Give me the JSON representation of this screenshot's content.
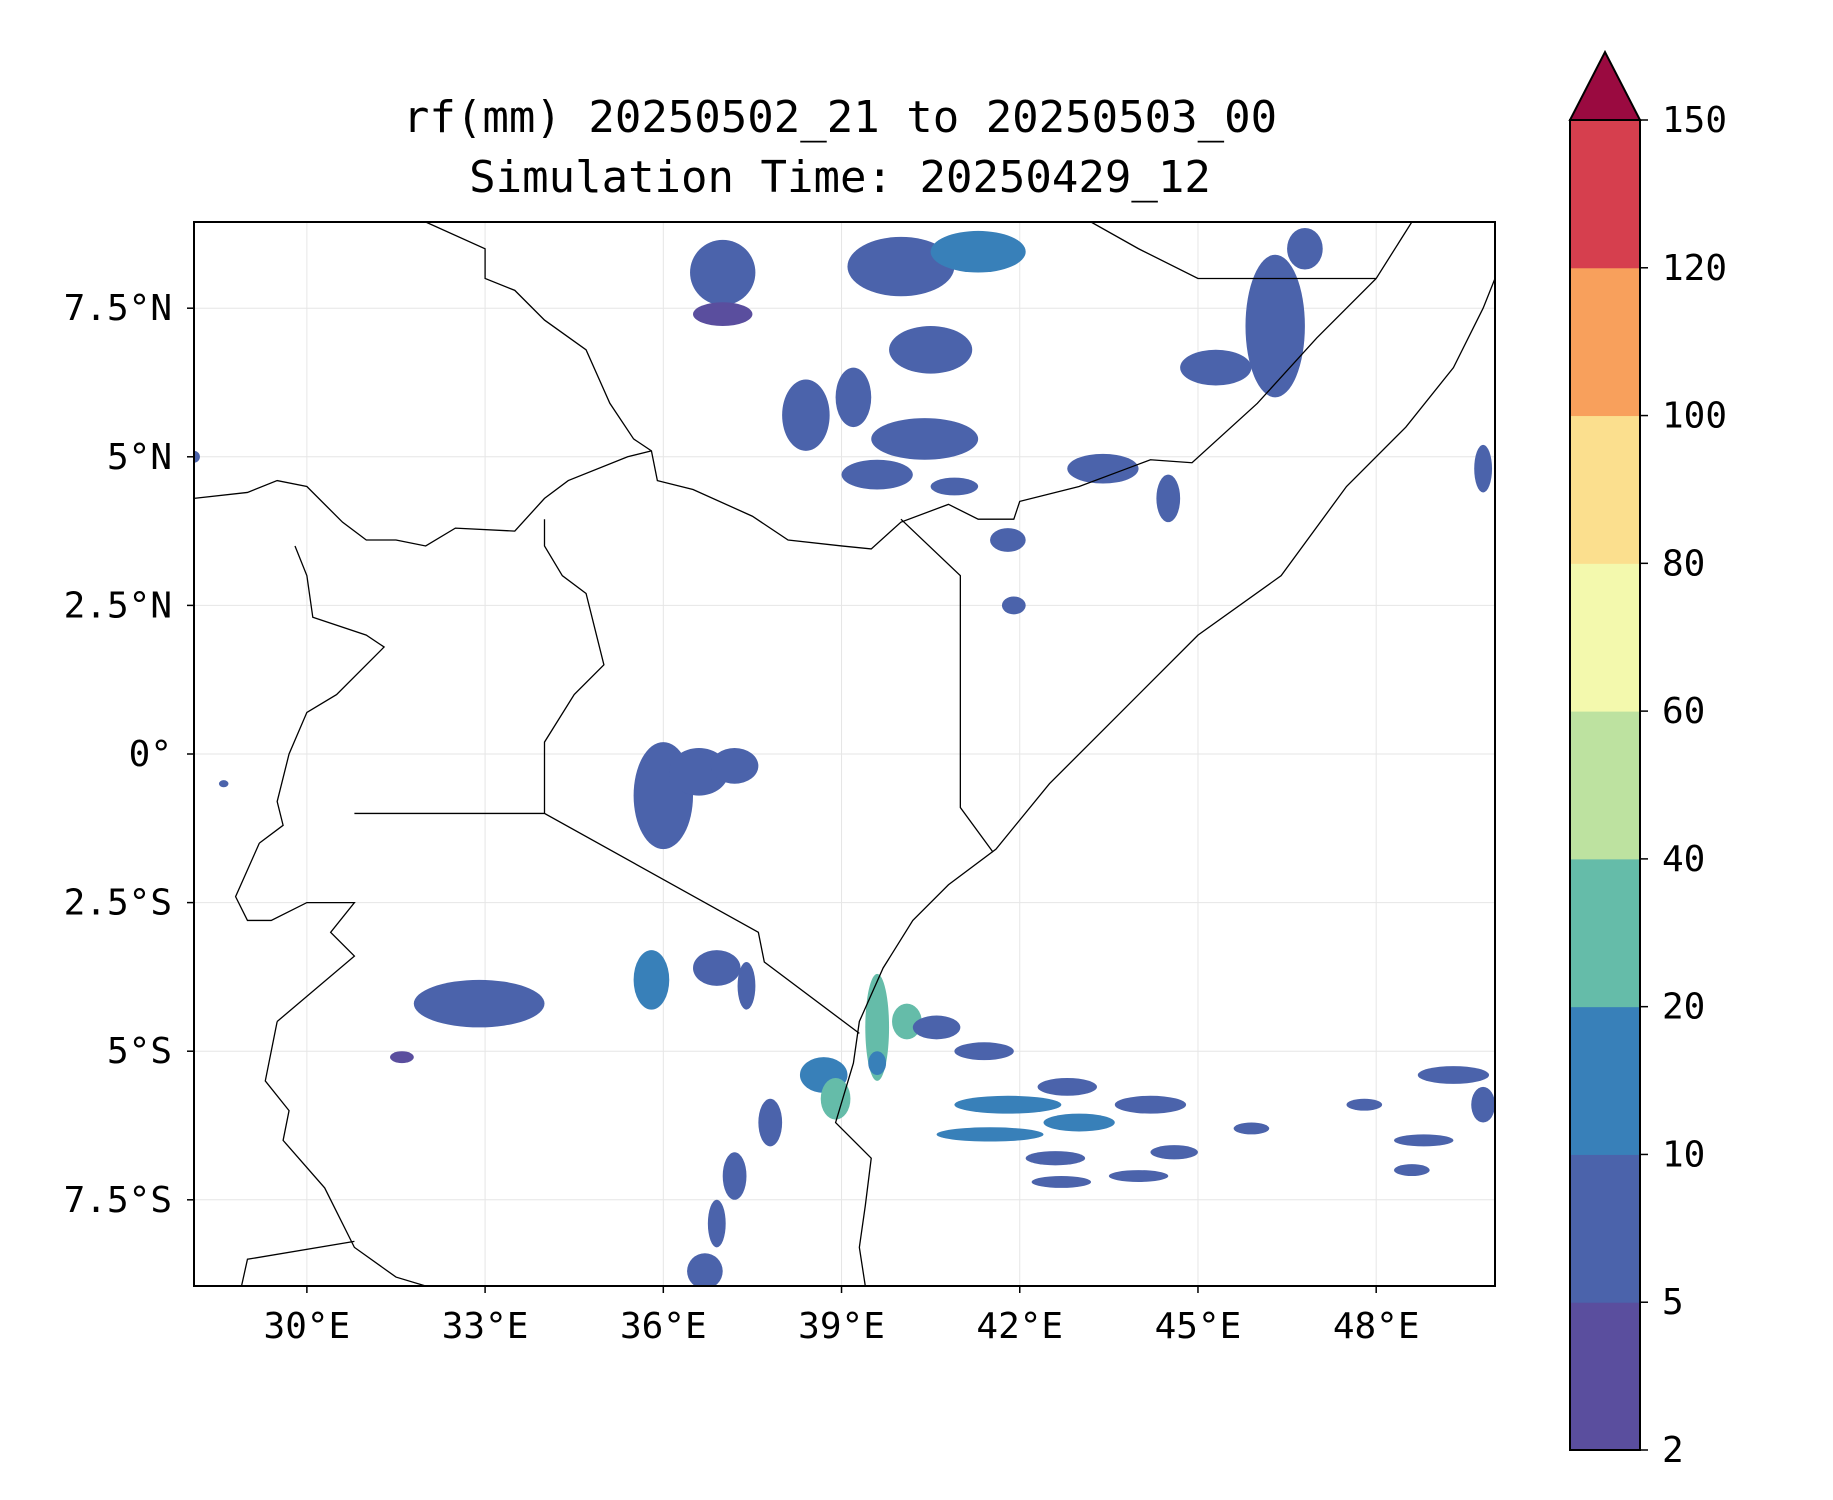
{
  "title": {
    "line1": "rf(mm) 20250502_21 to 20250503_00",
    "line2": "Simulation Time: 20250429_12"
  },
  "map": {
    "extent": {
      "lon_min": 28.1,
      "lon_max": 50.0,
      "lat_min": -8.95,
      "lat_max": 8.95
    },
    "gridlines": true,
    "lon_ticks": [
      {
        "value": 30,
        "label": "30°E"
      },
      {
        "value": 33,
        "label": "33°E"
      },
      {
        "value": 36,
        "label": "36°E"
      },
      {
        "value": 39,
        "label": "39°E"
      },
      {
        "value": 42,
        "label": "42°E"
      },
      {
        "value": 45,
        "label": "45°E"
      },
      {
        "value": 48,
        "label": "48°E"
      }
    ],
    "lat_ticks": [
      {
        "value": 7.5,
        "label": "7.5°N"
      },
      {
        "value": 5,
        "label": "5°N"
      },
      {
        "value": 2.5,
        "label": "2.5°N"
      },
      {
        "value": 0,
        "label": "0°"
      },
      {
        "value": -2.5,
        "label": "2.5°S"
      },
      {
        "value": -5,
        "label": "5°S"
      },
      {
        "value": -7.5,
        "label": "7.5°S"
      }
    ],
    "borders": [
      [
        [
          32.0,
          8.95
        ],
        [
          33.0,
          8.5
        ],
        [
          33.0,
          8.0
        ],
        [
          33.5,
          7.8
        ],
        [
          34.0,
          7.3
        ],
        [
          34.7,
          6.8
        ],
        [
          35.1,
          5.9
        ],
        [
          35.5,
          5.3
        ],
        [
          35.8,
          5.1
        ],
        [
          35.9,
          4.6
        ],
        [
          36.5,
          4.45
        ],
        [
          37.5,
          4.0
        ],
        [
          38.1,
          3.6
        ],
        [
          39.0,
          3.5
        ],
        [
          39.5,
          3.45
        ],
        [
          40.0,
          3.9
        ],
        [
          40.8,
          4.2
        ],
        [
          41.3,
          3.95
        ],
        [
          41.9,
          3.95
        ],
        [
          42.0,
          4.25
        ],
        [
          43.0,
          4.5
        ],
        [
          43.8,
          4.8
        ],
        [
          44.2,
          4.95
        ],
        [
          44.9,
          4.9
        ],
        [
          46.0,
          5.9
        ],
        [
          47.0,
          7.0
        ],
        [
          48.0,
          8.0
        ],
        [
          48.6,
          8.95
        ]
      ],
      [
        [
          40.0,
          3.95
        ],
        [
          41.0,
          3.0
        ],
        [
          41.0,
          2.0
        ],
        [
          41.0,
          1.0
        ],
        [
          41.0,
          -0.9
        ],
        [
          41.55,
          -1.65
        ]
      ],
      [
        [
          43.2,
          8.95
        ],
        [
          44.0,
          8.5
        ],
        [
          45.0,
          8.0
        ],
        [
          47.0,
          8.0
        ],
        [
          48.0,
          8.0
        ]
      ],
      [
        [
          28.1,
          4.3
        ],
        [
          29.0,
          4.4
        ],
        [
          29.5,
          4.6
        ],
        [
          30.0,
          4.5
        ],
        [
          30.6,
          3.9
        ],
        [
          31.0,
          3.6
        ],
        [
          31.5,
          3.6
        ],
        [
          32.0,
          3.5
        ],
        [
          32.5,
          3.8
        ],
        [
          33.5,
          3.75
        ],
        [
          34.0,
          4.3
        ],
        [
          34.4,
          4.6
        ],
        [
          35.4,
          5.0
        ],
        [
          35.8,
          5.1
        ]
      ],
      [
        [
          29.8,
          3.5
        ],
        [
          30.0,
          3.0
        ],
        [
          30.1,
          2.3
        ],
        [
          31.0,
          2.0
        ],
        [
          31.3,
          1.8
        ],
        [
          30.5,
          1.0
        ],
        [
          30.0,
          0.7
        ],
        [
          29.7,
          0.0
        ],
        [
          29.5,
          -0.8
        ],
        [
          29.6,
          -1.2
        ],
        [
          29.2,
          -1.5
        ]
      ],
      [
        [
          34.0,
          3.95
        ],
        [
          34.0,
          3.5
        ],
        [
          34.3,
          3.0
        ],
        [
          34.7,
          2.7
        ],
        [
          35.0,
          1.5
        ],
        [
          34.5,
          1.0
        ],
        [
          34.0,
          0.2
        ],
        [
          34.0,
          -1.0
        ]
      ],
      [
        [
          30.8,
          -1.0
        ],
        [
          34.0,
          -1.0
        ],
        [
          37.6,
          -3.0
        ],
        [
          37.7,
          -3.5
        ],
        [
          39.3,
          -4.7
        ]
      ],
      [
        [
          29.2,
          -1.5
        ],
        [
          28.8,
          -2.4
        ],
        [
          29.0,
          -2.8
        ],
        [
          29.4,
          -2.8
        ],
        [
          30.0,
          -2.5
        ],
        [
          30.8,
          -2.5
        ],
        [
          30.4,
          -3.0
        ],
        [
          30.8,
          -3.4
        ],
        [
          29.5,
          -4.5
        ]
      ],
      [
        [
          29.5,
          -4.5
        ],
        [
          29.3,
          -5.5
        ],
        [
          29.7,
          -6.0
        ],
        [
          29.6,
          -6.5
        ],
        [
          30.3,
          -7.3
        ],
        [
          30.8,
          -8.3
        ],
        [
          31.5,
          -8.8
        ],
        [
          32.0,
          -8.95
        ]
      ],
      [
        [
          28.9,
          -8.95
        ],
        [
          29.0,
          -8.5
        ],
        [
          30.8,
          -8.2
        ]
      ]
    ],
    "coastline": [
      [
        50.0,
        8.0
      ],
      [
        49.8,
        7.5
      ],
      [
        49.3,
        6.5
      ],
      [
        48.5,
        5.5
      ],
      [
        47.5,
        4.5
      ],
      [
        46.4,
        3.0
      ],
      [
        45.0,
        2.0
      ],
      [
        43.5,
        0.5
      ],
      [
        42.5,
        -0.5
      ],
      [
        41.6,
        -1.6
      ],
      [
        40.8,
        -2.2
      ],
      [
        40.2,
        -2.8
      ],
      [
        39.7,
        -3.6
      ],
      [
        39.3,
        -4.5
      ],
      [
        39.2,
        -5.2
      ],
      [
        38.9,
        -6.2
      ],
      [
        39.5,
        -6.8
      ],
      [
        39.4,
        -7.6
      ],
      [
        39.3,
        -8.3
      ],
      [
        39.4,
        -8.95
      ]
    ],
    "rain_cells": [
      {
        "lon": 37.0,
        "lat": 8.1,
        "rx": 0.55,
        "ry": 0.55,
        "value": 6
      },
      {
        "lon": 37.0,
        "lat": 7.4,
        "rx": 0.5,
        "ry": 0.2,
        "value": 4
      },
      {
        "lon": 40.0,
        "lat": 8.2,
        "rx": 0.9,
        "ry": 0.5,
        "value": 8
      },
      {
        "lon": 41.3,
        "lat": 8.45,
        "rx": 0.8,
        "ry": 0.35,
        "value": 12
      },
      {
        "lon": 40.5,
        "lat": 6.8,
        "rx": 0.7,
        "ry": 0.4,
        "value": 6
      },
      {
        "lon": 46.3,
        "lat": 7.2,
        "rx": 0.5,
        "ry": 1.2,
        "value": 8
      },
      {
        "lon": 46.8,
        "lat": 8.5,
        "rx": 0.3,
        "ry": 0.35,
        "value": 6
      },
      {
        "lon": 45.3,
        "lat": 6.5,
        "rx": 0.6,
        "ry": 0.3,
        "value": 6
      },
      {
        "lon": 38.4,
        "lat": 5.7,
        "rx": 0.4,
        "ry": 0.6,
        "value": 7
      },
      {
        "lon": 39.2,
        "lat": 6.0,
        "rx": 0.3,
        "ry": 0.5,
        "value": 6
      },
      {
        "lon": 40.4,
        "lat": 5.3,
        "rx": 0.9,
        "ry": 0.35,
        "value": 8
      },
      {
        "lon": 39.6,
        "lat": 4.7,
        "rx": 0.6,
        "ry": 0.25,
        "value": 6
      },
      {
        "lon": 40.9,
        "lat": 4.5,
        "rx": 0.4,
        "ry": 0.15,
        "value": 5
      },
      {
        "lon": 43.4,
        "lat": 4.8,
        "rx": 0.6,
        "ry": 0.25,
        "value": 6
      },
      {
        "lon": 44.5,
        "lat": 4.3,
        "rx": 0.2,
        "ry": 0.4,
        "value": 5
      },
      {
        "lon": 49.8,
        "lat": 4.8,
        "rx": 0.15,
        "ry": 0.4,
        "value": 5
      },
      {
        "lon": 41.8,
        "lat": 3.6,
        "rx": 0.3,
        "ry": 0.2,
        "value": 5
      },
      {
        "lon": 41.9,
        "lat": 2.5,
        "rx": 0.2,
        "ry": 0.15,
        "value": 5
      },
      {
        "lon": 36.0,
        "lat": -0.7,
        "rx": 0.5,
        "ry": 0.9,
        "value": 6
      },
      {
        "lon": 36.6,
        "lat": -0.3,
        "rx": 0.5,
        "ry": 0.4,
        "value": 8
      },
      {
        "lon": 37.2,
        "lat": -0.2,
        "rx": 0.4,
        "ry": 0.3,
        "value": 5
      },
      {
        "lon": 32.9,
        "lat": -4.2,
        "rx": 1.1,
        "ry": 0.4,
        "value": 6
      },
      {
        "lon": 31.6,
        "lat": -5.1,
        "rx": 0.2,
        "ry": 0.1,
        "value": 4
      },
      {
        "lon": 35.8,
        "lat": -3.8,
        "rx": 0.3,
        "ry": 0.5,
        "value": 12
      },
      {
        "lon": 36.9,
        "lat": -3.6,
        "rx": 0.4,
        "ry": 0.3,
        "value": 6
      },
      {
        "lon": 37.4,
        "lat": -3.9,
        "rx": 0.15,
        "ry": 0.4,
        "value": 5
      },
      {
        "lon": 39.6,
        "lat": -4.6,
        "rx": 0.2,
        "ry": 0.9,
        "value": 25
      },
      {
        "lon": 40.1,
        "lat": -4.5,
        "rx": 0.25,
        "ry": 0.3,
        "value": 25
      },
      {
        "lon": 38.7,
        "lat": -5.4,
        "rx": 0.4,
        "ry": 0.3,
        "value": 15
      },
      {
        "lon": 38.9,
        "lat": -5.8,
        "rx": 0.25,
        "ry": 0.35,
        "value": 25
      },
      {
        "lon": 39.6,
        "lat": -5.2,
        "rx": 0.15,
        "ry": 0.2,
        "value": 15
      },
      {
        "lon": 40.6,
        "lat": -4.6,
        "rx": 0.4,
        "ry": 0.2,
        "value": 6
      },
      {
        "lon": 41.4,
        "lat": -5.0,
        "rx": 0.5,
        "ry": 0.15,
        "value": 6
      },
      {
        "lon": 41.8,
        "lat": -5.9,
        "rx": 0.9,
        "ry": 0.15,
        "value": 12
      },
      {
        "lon": 42.8,
        "lat": -5.6,
        "rx": 0.5,
        "ry": 0.15,
        "value": 6
      },
      {
        "lon": 43.0,
        "lat": -6.2,
        "rx": 0.6,
        "ry": 0.15,
        "value": 12
      },
      {
        "lon": 41.5,
        "lat": -6.4,
        "rx": 0.9,
        "ry": 0.12,
        "value": 12
      },
      {
        "lon": 42.6,
        "lat": -6.8,
        "rx": 0.5,
        "ry": 0.12,
        "value": 6
      },
      {
        "lon": 44.2,
        "lat": -5.9,
        "rx": 0.6,
        "ry": 0.15,
        "value": 6
      },
      {
        "lon": 44.6,
        "lat": -6.7,
        "rx": 0.4,
        "ry": 0.12,
        "value": 6
      },
      {
        "lon": 44.0,
        "lat": -7.1,
        "rx": 0.5,
        "ry": 0.1,
        "value": 5
      },
      {
        "lon": 42.7,
        "lat": -7.2,
        "rx": 0.5,
        "ry": 0.1,
        "value": 5
      },
      {
        "lon": 45.9,
        "lat": -6.3,
        "rx": 0.3,
        "ry": 0.1,
        "value": 5
      },
      {
        "lon": 47.8,
        "lat": -5.9,
        "rx": 0.3,
        "ry": 0.1,
        "value": 6
      },
      {
        "lon": 48.8,
        "lat": -6.5,
        "rx": 0.5,
        "ry": 0.1,
        "value": 5
      },
      {
        "lon": 49.3,
        "lat": -5.4,
        "rx": 0.6,
        "ry": 0.15,
        "value": 5
      },
      {
        "lon": 48.6,
        "lat": -7.0,
        "rx": 0.3,
        "ry": 0.1,
        "value": 5
      },
      {
        "lon": 49.8,
        "lat": -5.9,
        "rx": 0.2,
        "ry": 0.3,
        "value": 5
      },
      {
        "lon": 37.8,
        "lat": -6.2,
        "rx": 0.2,
        "ry": 0.4,
        "value": 6
      },
      {
        "lon": 37.2,
        "lat": -7.1,
        "rx": 0.2,
        "ry": 0.4,
        "value": 6
      },
      {
        "lon": 36.9,
        "lat": -7.9,
        "rx": 0.15,
        "ry": 0.4,
        "value": 6
      },
      {
        "lon": 36.7,
        "lat": -8.7,
        "rx": 0.3,
        "ry": 0.3,
        "value": 6
      },
      {
        "lon": 28.1,
        "lat": 5.0,
        "rx": 0.1,
        "ry": 0.1,
        "value": 5
      },
      {
        "lon": 28.6,
        "lat": -0.5,
        "rx": 0.08,
        "ry": 0.06,
        "value": 5
      }
    ]
  },
  "colorbar": {
    "levels": [
      2,
      5,
      10,
      20,
      40,
      60,
      80,
      100,
      120,
      150
    ],
    "labels": [
      "2",
      "5",
      "10",
      "20",
      "40",
      "60",
      "80",
      "100",
      "120",
      "150"
    ],
    "colors": [
      "#5a4e9e",
      "#4b63ab",
      "#3880b9",
      "#65bca9",
      "#bde2a0",
      "#f3f9ad",
      "#fbdf8e",
      "#f8a05c",
      "#d63f4e"
    ],
    "extend_color": "#9a0a40",
    "extend": "max"
  },
  "chart_data": {
    "type": "heatmap",
    "title": "rf(mm) 20250502_21 to 20250503_00\nSimulation Time: 20250429_12",
    "xlabel": "",
    "ylabel": "",
    "xlim": [
      28.1,
      50.0
    ],
    "ylim": [
      -8.95,
      8.95
    ],
    "x_ticks": [
      "30°E",
      "33°E",
      "36°E",
      "39°E",
      "42°E",
      "45°E",
      "48°E"
    ],
    "y_ticks": [
      "7.5°N",
      "5°N",
      "2.5°N",
      "0°",
      "2.5°S",
      "5°S",
      "7.5°S"
    ],
    "colorbar_levels": [
      2,
      5,
      10,
      20,
      40,
      60,
      80,
      100,
      120,
      150
    ],
    "grid": true
  }
}
